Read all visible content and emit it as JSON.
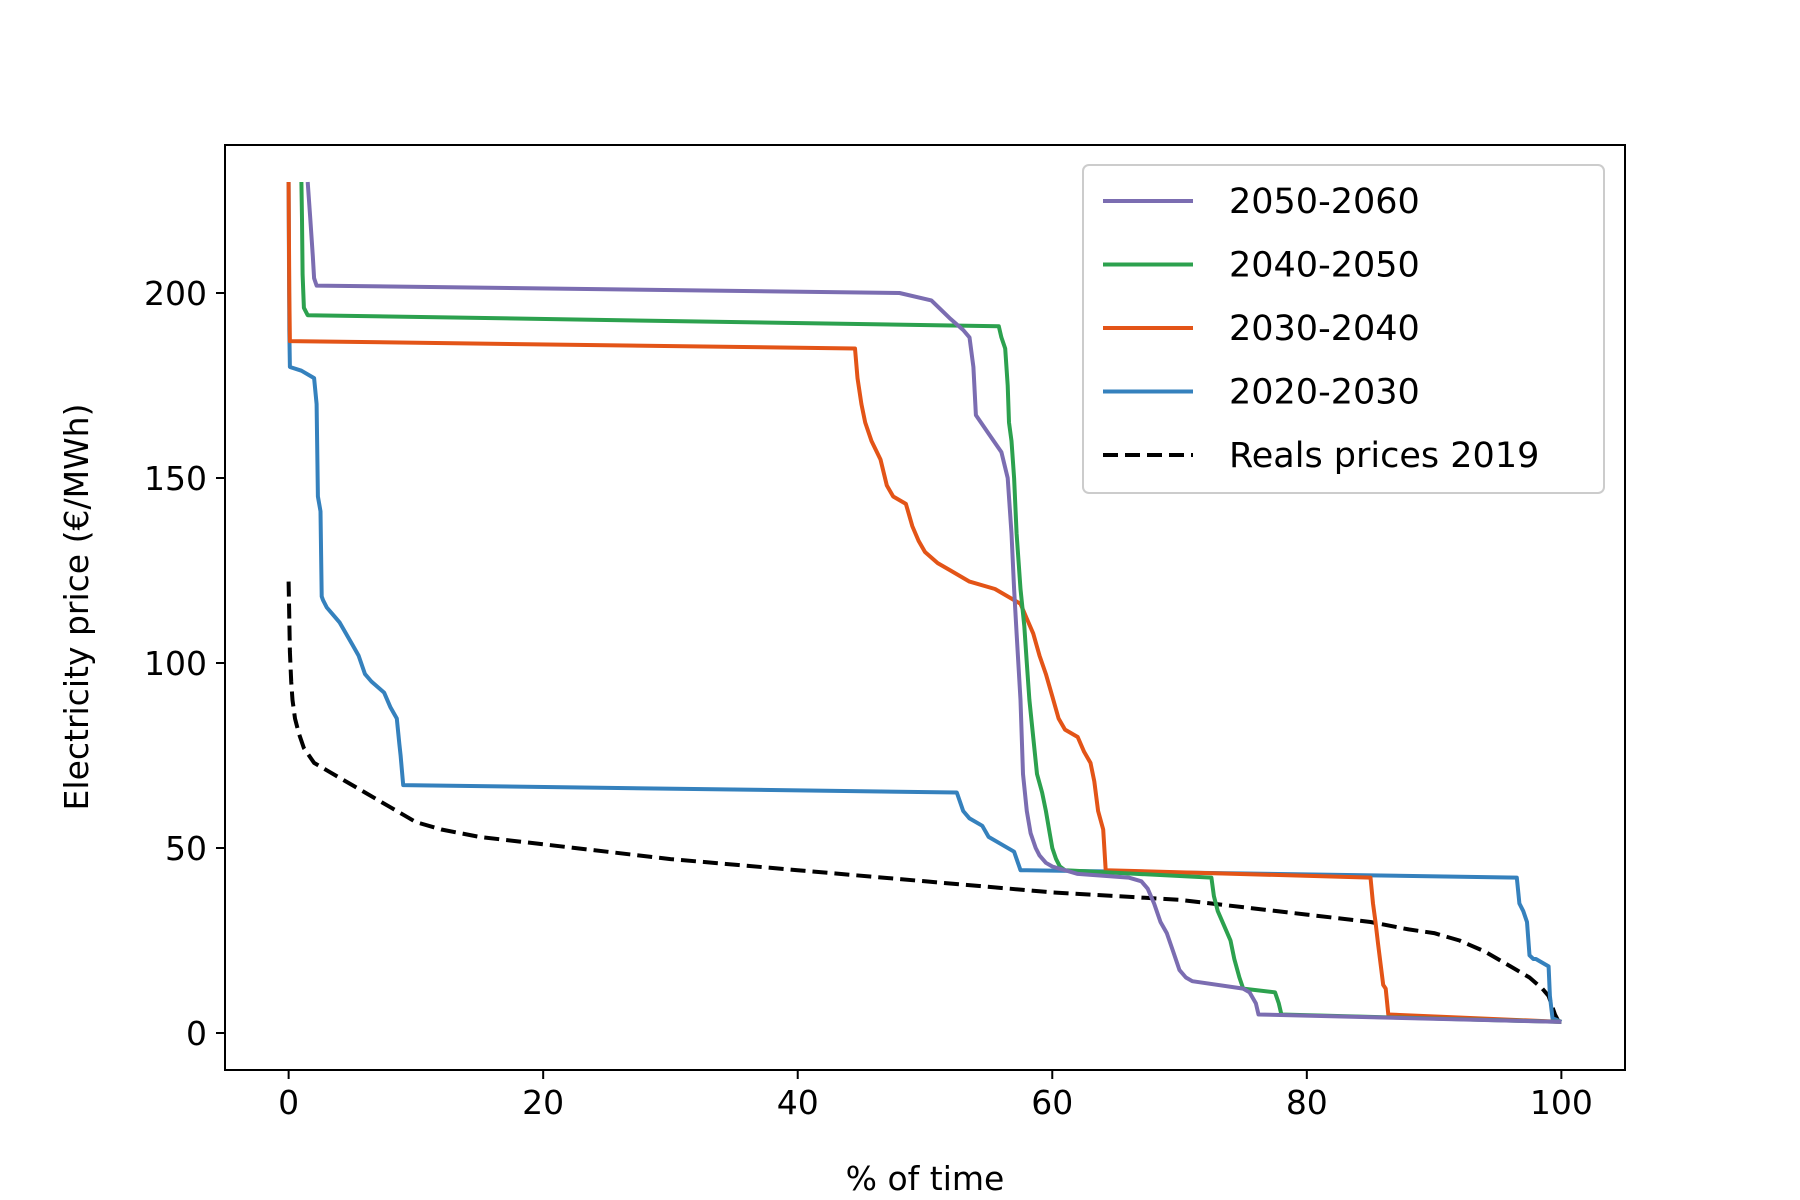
{
  "chart_data": {
    "type": "line",
    "xlabel": "% of time",
    "ylabel": "Electricity price (€/MWh)",
    "xlim": [
      -5,
      105
    ],
    "ylim": [
      -10,
      240
    ],
    "xticks": [
      0,
      20,
      40,
      60,
      80,
      100
    ],
    "yticks": [
      0,
      50,
      100,
      150,
      200
    ],
    "grid": false,
    "legend_position": "top-right",
    "series": [
      {
        "name": "2050-2060",
        "color": "#7b6db1",
        "dashed": false,
        "x": [
          1.5,
          1.7,
          1.9,
          2.0,
          2.2,
          48.0,
          50.5,
          52.0,
          53.0,
          53.5,
          53.8,
          54.0,
          55.0,
          56.0,
          56.5,
          56.8,
          57.0,
          57.2,
          57.5,
          57.7,
          58.0,
          58.3,
          58.7,
          59.0,
          59.5,
          60.0,
          60.5,
          61.0,
          62.0,
          66.0,
          67.0,
          67.5,
          68.0,
          68.5,
          69.0,
          69.5,
          70.0,
          70.5,
          71.0,
          75.0,
          75.5,
          76.0,
          76.2,
          100.0
        ],
        "y": [
          230,
          220,
          210,
          204,
          202,
          200,
          198,
          193,
          190,
          188,
          180,
          167,
          162,
          157,
          150,
          135,
          120,
          108,
          90,
          70,
          60,
          54,
          50,
          48,
          46,
          45,
          44.5,
          44,
          43,
          42,
          41,
          39,
          35,
          30,
          27,
          22,
          17,
          15,
          14,
          12,
          11,
          8,
          5,
          3
        ]
      },
      {
        "name": "2040-2050",
        "color": "#2ca14e",
        "dashed": false,
        "x": [
          1.0,
          1.05,
          1.1,
          1.2,
          1.5,
          55.8,
          56.0,
          56.3,
          56.5,
          56.6,
          56.8,
          57.0,
          57.2,
          57.5,
          57.8,
          58.0,
          58.2,
          58.5,
          58.8,
          59.2,
          59.5,
          59.8,
          60.0,
          60.3,
          60.6,
          61.0,
          72.5,
          72.7,
          73.0,
          73.5,
          74.0,
          74.3,
          74.7,
          75.0,
          77.5,
          77.8,
          78.0,
          100.0
        ],
        "y": [
          230,
          220,
          205,
          196,
          194,
          191,
          188,
          185,
          175,
          165,
          160,
          150,
          135,
          120,
          110,
          100,
          90,
          80,
          70,
          65,
          60,
          54,
          50,
          47,
          45,
          44,
          42,
          37,
          33,
          29,
          25,
          20,
          15,
          12,
          11,
          8,
          5,
          3
        ]
      },
      {
        "name": "2030-2040",
        "color": "#e35417",
        "dashed": false,
        "x": [
          0.0,
          0.05,
          0.1,
          44.5,
          44.7,
          45.0,
          45.3,
          45.8,
          46.5,
          47.0,
          47.5,
          48.5,
          49.0,
          49.5,
          50.0,
          51.0,
          52.0,
          53.5,
          55.5,
          57.5,
          58.0,
          58.5,
          59.0,
          59.5,
          60.0,
          60.5,
          61.0,
          62.0,
          62.5,
          63.0,
          63.3,
          63.6,
          64.0,
          64.2,
          85.0,
          85.2,
          85.4,
          85.6,
          86.0,
          86.2,
          86.4,
          100.0
        ],
        "y": [
          230,
          200,
          187,
          185,
          177,
          170,
          165,
          160,
          155,
          148,
          145,
          143,
          137,
          133,
          130,
          127,
          125,
          122,
          120,
          116,
          112,
          108,
          102,
          97,
          91,
          85,
          82,
          80,
          76,
          73,
          68,
          60,
          55,
          44,
          42,
          35,
          30,
          24,
          13,
          12,
          5,
          3
        ]
      },
      {
        "name": "2020-2030",
        "color": "#3581bd",
        "dashed": false,
        "x": [
          0.0,
          0.05,
          0.1,
          1.0,
          2.0,
          2.2,
          2.3,
          2.4,
          2.5,
          2.6,
          2.7,
          3.0,
          3.5,
          4.0,
          4.5,
          5.0,
          5.5,
          6.0,
          6.5,
          7.5,
          8.0,
          8.5,
          8.7,
          8.8,
          9.0,
          52.5,
          53.0,
          53.5,
          54.5,
          55.0,
          56.0,
          57.0,
          57.5,
          58.0,
          96.5,
          96.7,
          97.0,
          97.3,
          97.5,
          97.8,
          98.0,
          99.0,
          99.1,
          99.3,
          100.0
        ],
        "y": [
          230,
          190,
          180,
          179,
          177,
          170,
          145,
          143,
          141,
          118,
          117,
          115,
          113,
          111,
          108,
          105,
          102,
          97,
          95,
          92,
          88,
          85,
          78,
          75,
          67,
          65,
          60,
          58,
          56,
          53,
          51,
          49,
          44,
          44,
          42,
          35,
          33,
          30,
          21,
          20,
          20,
          18,
          10,
          4,
          3
        ]
      },
      {
        "name": "Reals prices 2019",
        "color": "#000000",
        "dashed": true,
        "x": [
          0.0,
          0.05,
          0.1,
          0.2,
          0.3,
          0.5,
          0.8,
          1.2,
          2.0,
          3.0,
          4.0,
          5.0,
          6.0,
          7.0,
          8.0,
          9.0,
          10.0,
          12.0,
          15.0,
          20.0,
          25.0,
          30.0,
          40.0,
          50.0,
          60.0,
          70.0,
          80.0,
          85.0,
          88.0,
          90.0,
          92.0,
          94.0,
          96.0,
          97.5,
          98.5,
          99.0,
          99.5,
          99.8,
          100.0
        ],
        "y": [
          122,
          112,
          103,
          95,
          90,
          85,
          81,
          77,
          73,
          71,
          69,
          67,
          65,
          63,
          61,
          59,
          57,
          55,
          53,
          51,
          49,
          47,
          44,
          41,
          38,
          36,
          32,
          30,
          28,
          27,
          25,
          22,
          18,
          15,
          12,
          10,
          5,
          3,
          2
        ]
      }
    ],
    "legend_order": [
      "2050-2060",
      "2040-2050",
      "2030-2040",
      "2020-2030",
      "Reals prices 2019"
    ]
  }
}
